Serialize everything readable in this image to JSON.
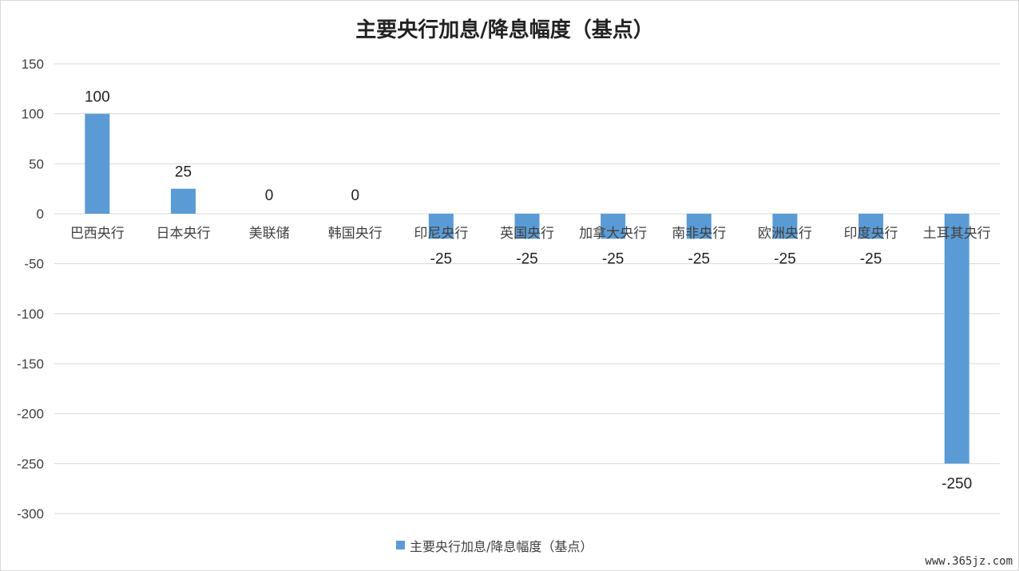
{
  "chart_data": {
    "type": "bar",
    "title": "主要央行加息/降息幅度（基点）",
    "categories": [
      "巴西央行",
      "日本央行",
      "美联储",
      "韩国央行",
      "印尼央行",
      "英国央行",
      "加拿大央行",
      "南非央行",
      "欧洲央行",
      "印度央行",
      "土耳其央行"
    ],
    "series": [
      {
        "name": "主要央行加息/降息幅度（基点）",
        "values": [
          100,
          25,
          0,
          0,
          -25,
          -25,
          -25,
          -25,
          -25,
          -25,
          -250
        ],
        "color": "#5B9BD5"
      }
    ],
    "ylim": [
      -300,
      150
    ],
    "yticks": [
      150,
      100,
      50,
      0,
      -50,
      -100,
      -150,
      -200,
      -250,
      -300
    ],
    "data_labels": true,
    "grid": true,
    "legend_position": "bottom"
  },
  "watermark": "www.365jz.com"
}
